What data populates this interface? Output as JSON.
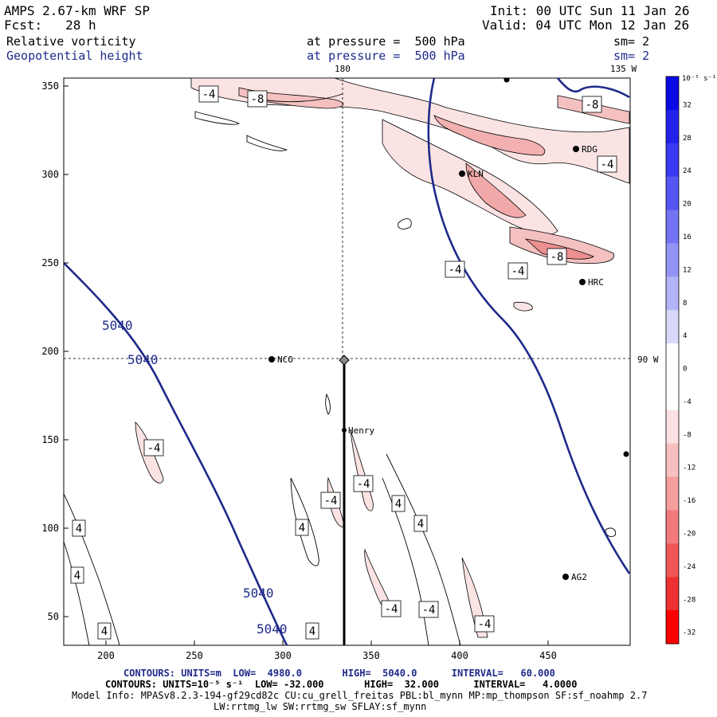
{
  "header": {
    "model": "AMPS 2.67-km WRF SP",
    "forecast": "Fcst:   28 h",
    "init": "Init: 00 UTC Sun 11 Jan 26",
    "valid": "Valid: 04 UTC Mon 12 Jan 26",
    "field1_name": "Relative vorticity",
    "field1_level": "at pressure =  500 hPa",
    "field1_sm": "sm= 2",
    "field2_name": "Geopotential height",
    "field2_level": "at pressure =  500 hPa",
    "field2_sm": "sm= 2"
  },
  "map": {
    "top_labels": {
      "lon180": "180",
      "lon135": "135 W"
    },
    "right_label": "90 W",
    "x_ticks": [
      "200",
      "250",
      "300",
      "350",
      "400",
      "450"
    ],
    "y_ticks": [
      "350",
      "300",
      "250",
      "200",
      "150",
      "100",
      "50"
    ],
    "stations": [
      "NCO",
      "Henry",
      "RDG",
      "KLN",
      "HRC",
      "AG2"
    ],
    "height_labels": [
      "5040",
      "5040",
      "5040",
      "5040"
    ],
    "vort_labels": [
      "-4",
      "-8",
      "-8",
      "-4",
      "-4",
      "-4",
      "-8",
      "-4",
      "-4",
      "-4",
      "-4",
      "-4",
      "-4",
      "4",
      "4",
      "4",
      "4",
      "4",
      "4",
      "4"
    ]
  },
  "colorbar": {
    "units": "10⁻⁵ s⁻¹",
    "labels": [
      "32",
      "28",
      "24",
      "20",
      "16",
      "12",
      "8",
      "4",
      "0",
      "-4",
      "-8",
      "-12",
      "-16",
      "-20",
      "-24",
      "-28",
      "-32"
    ],
    "colors": [
      "#0a0ae6",
      "#2222ec",
      "#3a3af0",
      "#5555f2",
      "#7373f4",
      "#9393f6",
      "#b4b4f8",
      "#d8d8fb",
      "#ffffff",
      "#ffffff",
      "#fbe1e1",
      "#f8c0c0",
      "#f59e9e",
      "#f27a7a",
      "#f05656",
      "#ee3030",
      "#ff0000"
    ]
  },
  "footer": {
    "line1": "CONTOURS: UNITS=m  LOW=  4980.0       HIGH=  5040.0      INTERVAL=   60.000",
    "line2": "CONTOURS: UNITS=10⁻⁵ s⁻¹  LOW= -32.000       HIGH=  32.000      INTERVAL=   4.0000",
    "line3": "Model Info: MPASv8.2.3-194-gf29cd82c CU:cu_grell_freitas PBL:bl_mynn MP:mp_thompson SF:sf_noahmp 2.7",
    "line4": "LW:rrtmg_lw SW:rrtmg_sw SFLAY:sf_mynn"
  },
  "colors": {
    "height_contour": "#1f2a8a",
    "vort_pos_fill": "#f4c6c6"
  }
}
